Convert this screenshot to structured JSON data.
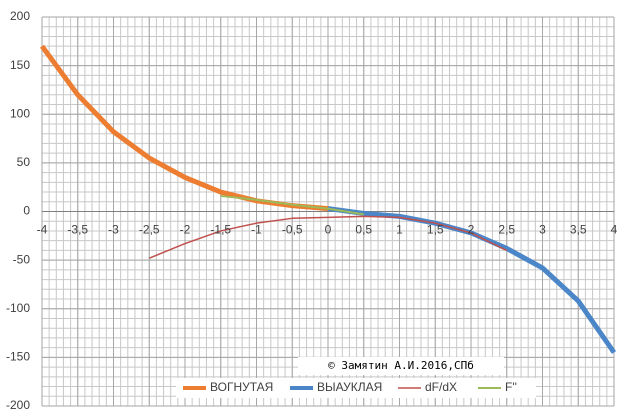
{
  "chart_data": {
    "type": "line",
    "annotation": "© Замятин А.И.2016,СПб",
    "xlim": [
      -4,
      4
    ],
    "ylim": [
      -200,
      200
    ],
    "xticks": [
      -4,
      {
        "value": -3.5,
        "label": "-3,5"
      },
      -3,
      {
        "value": -2.5,
        "label": "-2,5"
      },
      -2,
      {
        "value": -1.5,
        "label": "-1,5"
      },
      -1,
      {
        "value": -0.5,
        "label": "-0,5"
      },
      0,
      {
        "value": 0.5,
        "label": "0,5"
      },
      1,
      {
        "value": 1.5,
        "label": "1,5"
      },
      2,
      {
        "value": 2.5,
        "label": "2,5"
      },
      3,
      {
        "value": 3.5,
        "label": "3,5"
      },
      4
    ],
    "yticks": [
      -200,
      -150,
      -100,
      -50,
      0,
      50,
      100,
      150,
      200
    ],
    "grid": true,
    "minor_grid": {
      "x": 0.1,
      "y": 10
    },
    "legend": "bottom",
    "series": [
      {
        "name": "ВОГНУТАЯ",
        "color": "#ed7d31",
        "width": 5,
        "x": [
          -4,
          -3.5,
          -3,
          -2.5,
          -2,
          -1.5,
          -1,
          -0.5,
          0
        ],
        "values": [
          170,
          120,
          82,
          55,
          35,
          20,
          11,
          6,
          3
        ]
      },
      {
        "name": "ВЫАУКЛАЯ",
        "color": "#4a86c8",
        "width": 5,
        "x": [
          0,
          0.5,
          1,
          1.5,
          2,
          2.5,
          3,
          3.5,
          4
        ],
        "values": [
          3,
          -2,
          -5,
          -12,
          -22,
          -38,
          -58,
          -92,
          -145
        ]
      },
      {
        "name": "dF/dX",
        "color": "#c0504d",
        "width": 1.5,
        "x": [
          -2.5,
          -2,
          -1.5,
          -1,
          -0.5,
          0,
          0.5,
          1,
          1.5,
          2,
          2.5
        ],
        "values": [
          -48,
          -33,
          -20,
          -12,
          -7,
          -6,
          -5,
          -6,
          -12,
          -22,
          -40
        ]
      },
      {
        "name": "F''",
        "color": "#9bbb59",
        "width": 2,
        "x": [
          -1.5,
          -1,
          -0.5,
          0,
          0.5
        ],
        "values": [
          16,
          12,
          7,
          3,
          -3
        ]
      }
    ]
  }
}
